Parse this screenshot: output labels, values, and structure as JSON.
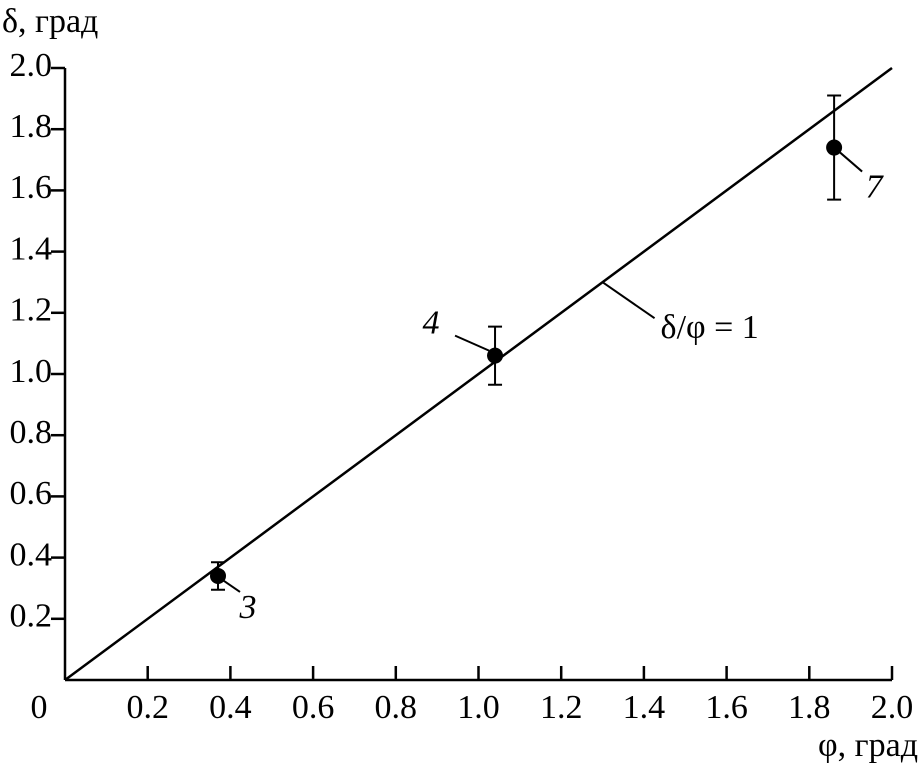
{
  "chart_data": {
    "type": "scatter",
    "y_label": "δ, град",
    "x_label": "φ, град",
    "x": [
      0.37,
      1.04,
      1.86
    ],
    "values": [
      0.34,
      1.06,
      1.74
    ],
    "errors": [
      0.045,
      0.095,
      0.17
    ],
    "point_labels": [
      "3",
      "4",
      "7"
    ],
    "color": "#000000",
    "reference_line": {
      "label": "δ/φ = 1",
      "x": [
        0,
        2
      ],
      "values": [
        0,
        2
      ]
    },
    "xlim": [
      0,
      2
    ],
    "ylim": [
      0,
      2
    ],
    "xticks": [
      0,
      0.2,
      0.4,
      0.6,
      0.8,
      {
        "value": 1,
        "label": "1.0"
      },
      1.2,
      1.4,
      1.6,
      1.8,
      {
        "value": 2,
        "label": "2.0"
      }
    ],
    "yticks": [
      0.2,
      0.4,
      0.6,
      0.8,
      {
        "value": 1,
        "label": "1.0"
      },
      1.2,
      1.4,
      1.6,
      1.8,
      {
        "value": 2,
        "label": "2.0"
      }
    ],
    "grid": false
  }
}
